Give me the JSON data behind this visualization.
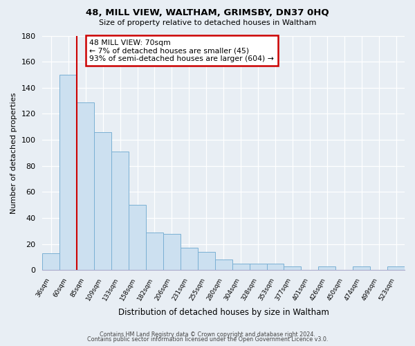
{
  "title": "48, MILL VIEW, WALTHAM, GRIMSBY, DN37 0HQ",
  "subtitle": "Size of property relative to detached houses in Waltham",
  "xlabel": "Distribution of detached houses by size in Waltham",
  "ylabel": "Number of detached properties",
  "bar_color": "#cce0f0",
  "bar_edge_color": "#7ab0d4",
  "categories": [
    "36sqm",
    "60sqm",
    "85sqm",
    "109sqm",
    "133sqm",
    "158sqm",
    "182sqm",
    "206sqm",
    "231sqm",
    "255sqm",
    "280sqm",
    "304sqm",
    "328sqm",
    "353sqm",
    "377sqm",
    "401sqm",
    "426sqm",
    "450sqm",
    "474sqm",
    "499sqm",
    "523sqm"
  ],
  "values": [
    13,
    150,
    129,
    106,
    91,
    50,
    29,
    28,
    17,
    14,
    8,
    5,
    5,
    5,
    3,
    0,
    3,
    0,
    3,
    0,
    3
  ],
  "ylim": [
    0,
    180
  ],
  "yticks": [
    0,
    20,
    40,
    60,
    80,
    100,
    120,
    140,
    160,
    180
  ],
  "property_line_color": "#cc0000",
  "property_line_bar_idx": 1,
  "annotation_title": "48 MILL VIEW: 70sqm",
  "annotation_line1": "← 7% of detached houses are smaller (45)",
  "annotation_line2": "93% of semi-detached houses are larger (604) →",
  "annotation_box_color": "#ffffff",
  "annotation_box_edge": "#cc0000",
  "footer_line1": "Contains HM Land Registry data © Crown copyright and database right 2024.",
  "footer_line2": "Contains public sector information licensed under the Open Government Licence v3.0.",
  "background_color": "#e8eef4",
  "grid_color": "#ffffff",
  "spine_color": "#aaaacc"
}
